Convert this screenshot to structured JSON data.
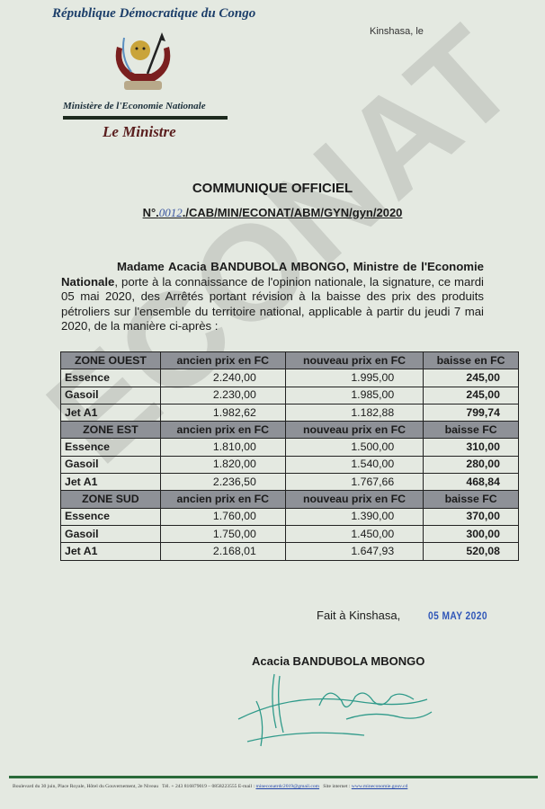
{
  "header": {
    "republic": "République Démocratique du Congo",
    "ministry": "Ministère de l'Economie Nationale",
    "office": "Le Ministre",
    "place_date": "Kinshasa, le"
  },
  "title": "COMMUNIQUE OFFICIEL",
  "reference": {
    "prefix": "N°.",
    "number_handwritten": "0012",
    "suffix": "./CAB/MIN/ECONAT/ABM/GYN/gyn/2020"
  },
  "body": {
    "name": "Madame Acacia BANDUBOLA MBONGO, Ministre de l'Economie Nationale",
    "text": ", porte à la connaissance de l'opinion nationale, la signature, ce mardi 05 mai 2020, des Arrêtés portant révision à la baisse des prix des produits pétroliers sur l'ensemble du territoire national, applicable à partir du jeudi 7 mai 2020,  de la manière ci-après :"
  },
  "table": {
    "zones": [
      {
        "header": [
          "ZONE OUEST",
          "ancien prix en FC",
          "nouveau prix en FC",
          "baisse en FC"
        ],
        "rows": [
          [
            "Essence",
            "2.240,00",
            "1.995,00",
            "245,00"
          ],
          [
            "Gasoil",
            "2.230,00",
            "1.985,00",
            "245,00"
          ],
          [
            "Jet A1",
            "1.982,62",
            "1.182,88",
            "799,74"
          ]
        ]
      },
      {
        "header": [
          "ZONE EST",
          "ancien prix en FC",
          "nouveau prix en FC",
          "baisse FC"
        ],
        "rows": [
          [
            "Essence",
            "1.810,00",
            "1.500,00",
            "310,00"
          ],
          [
            "Gasoil",
            "1.820,00",
            "1.540,00",
            "280,00"
          ],
          [
            "Jet A1",
            "2.236,50",
            "1.767,66",
            "468,84"
          ]
        ]
      },
      {
        "header": [
          "ZONE SUD",
          "ancien prix en FC",
          "nouveau prix en FC",
          "baisse FC"
        ],
        "rows": [
          [
            "Essence",
            "1.760,00",
            "1.390,00",
            "370,00"
          ],
          [
            "Gasoil",
            "1.750,00",
            "1.450,00",
            "300,00"
          ],
          [
            "Jet A1",
            "2.168,01",
            "1.647,93",
            "520,08"
          ]
        ]
      }
    ]
  },
  "closing": {
    "fait": "Fait à Kinshasa,",
    "stamp_date": "05 MAY 2020",
    "signatory": "Acacia BANDUBOLA MBONGO"
  },
  "watermark": "ECONAT",
  "footer": {
    "address": "Boulevard du 30 juin, Place Royale, Hôtel du Gouvernement, 2e Niveau",
    "phone": "Tél. + 243 816879019 – 0858223555",
    "email_label": "E-mail :",
    "email": "mineconatrdc2019@gmail.com",
    "site_label": "Site internet :",
    "site": "www.mineconomie.gouv.cd"
  }
}
